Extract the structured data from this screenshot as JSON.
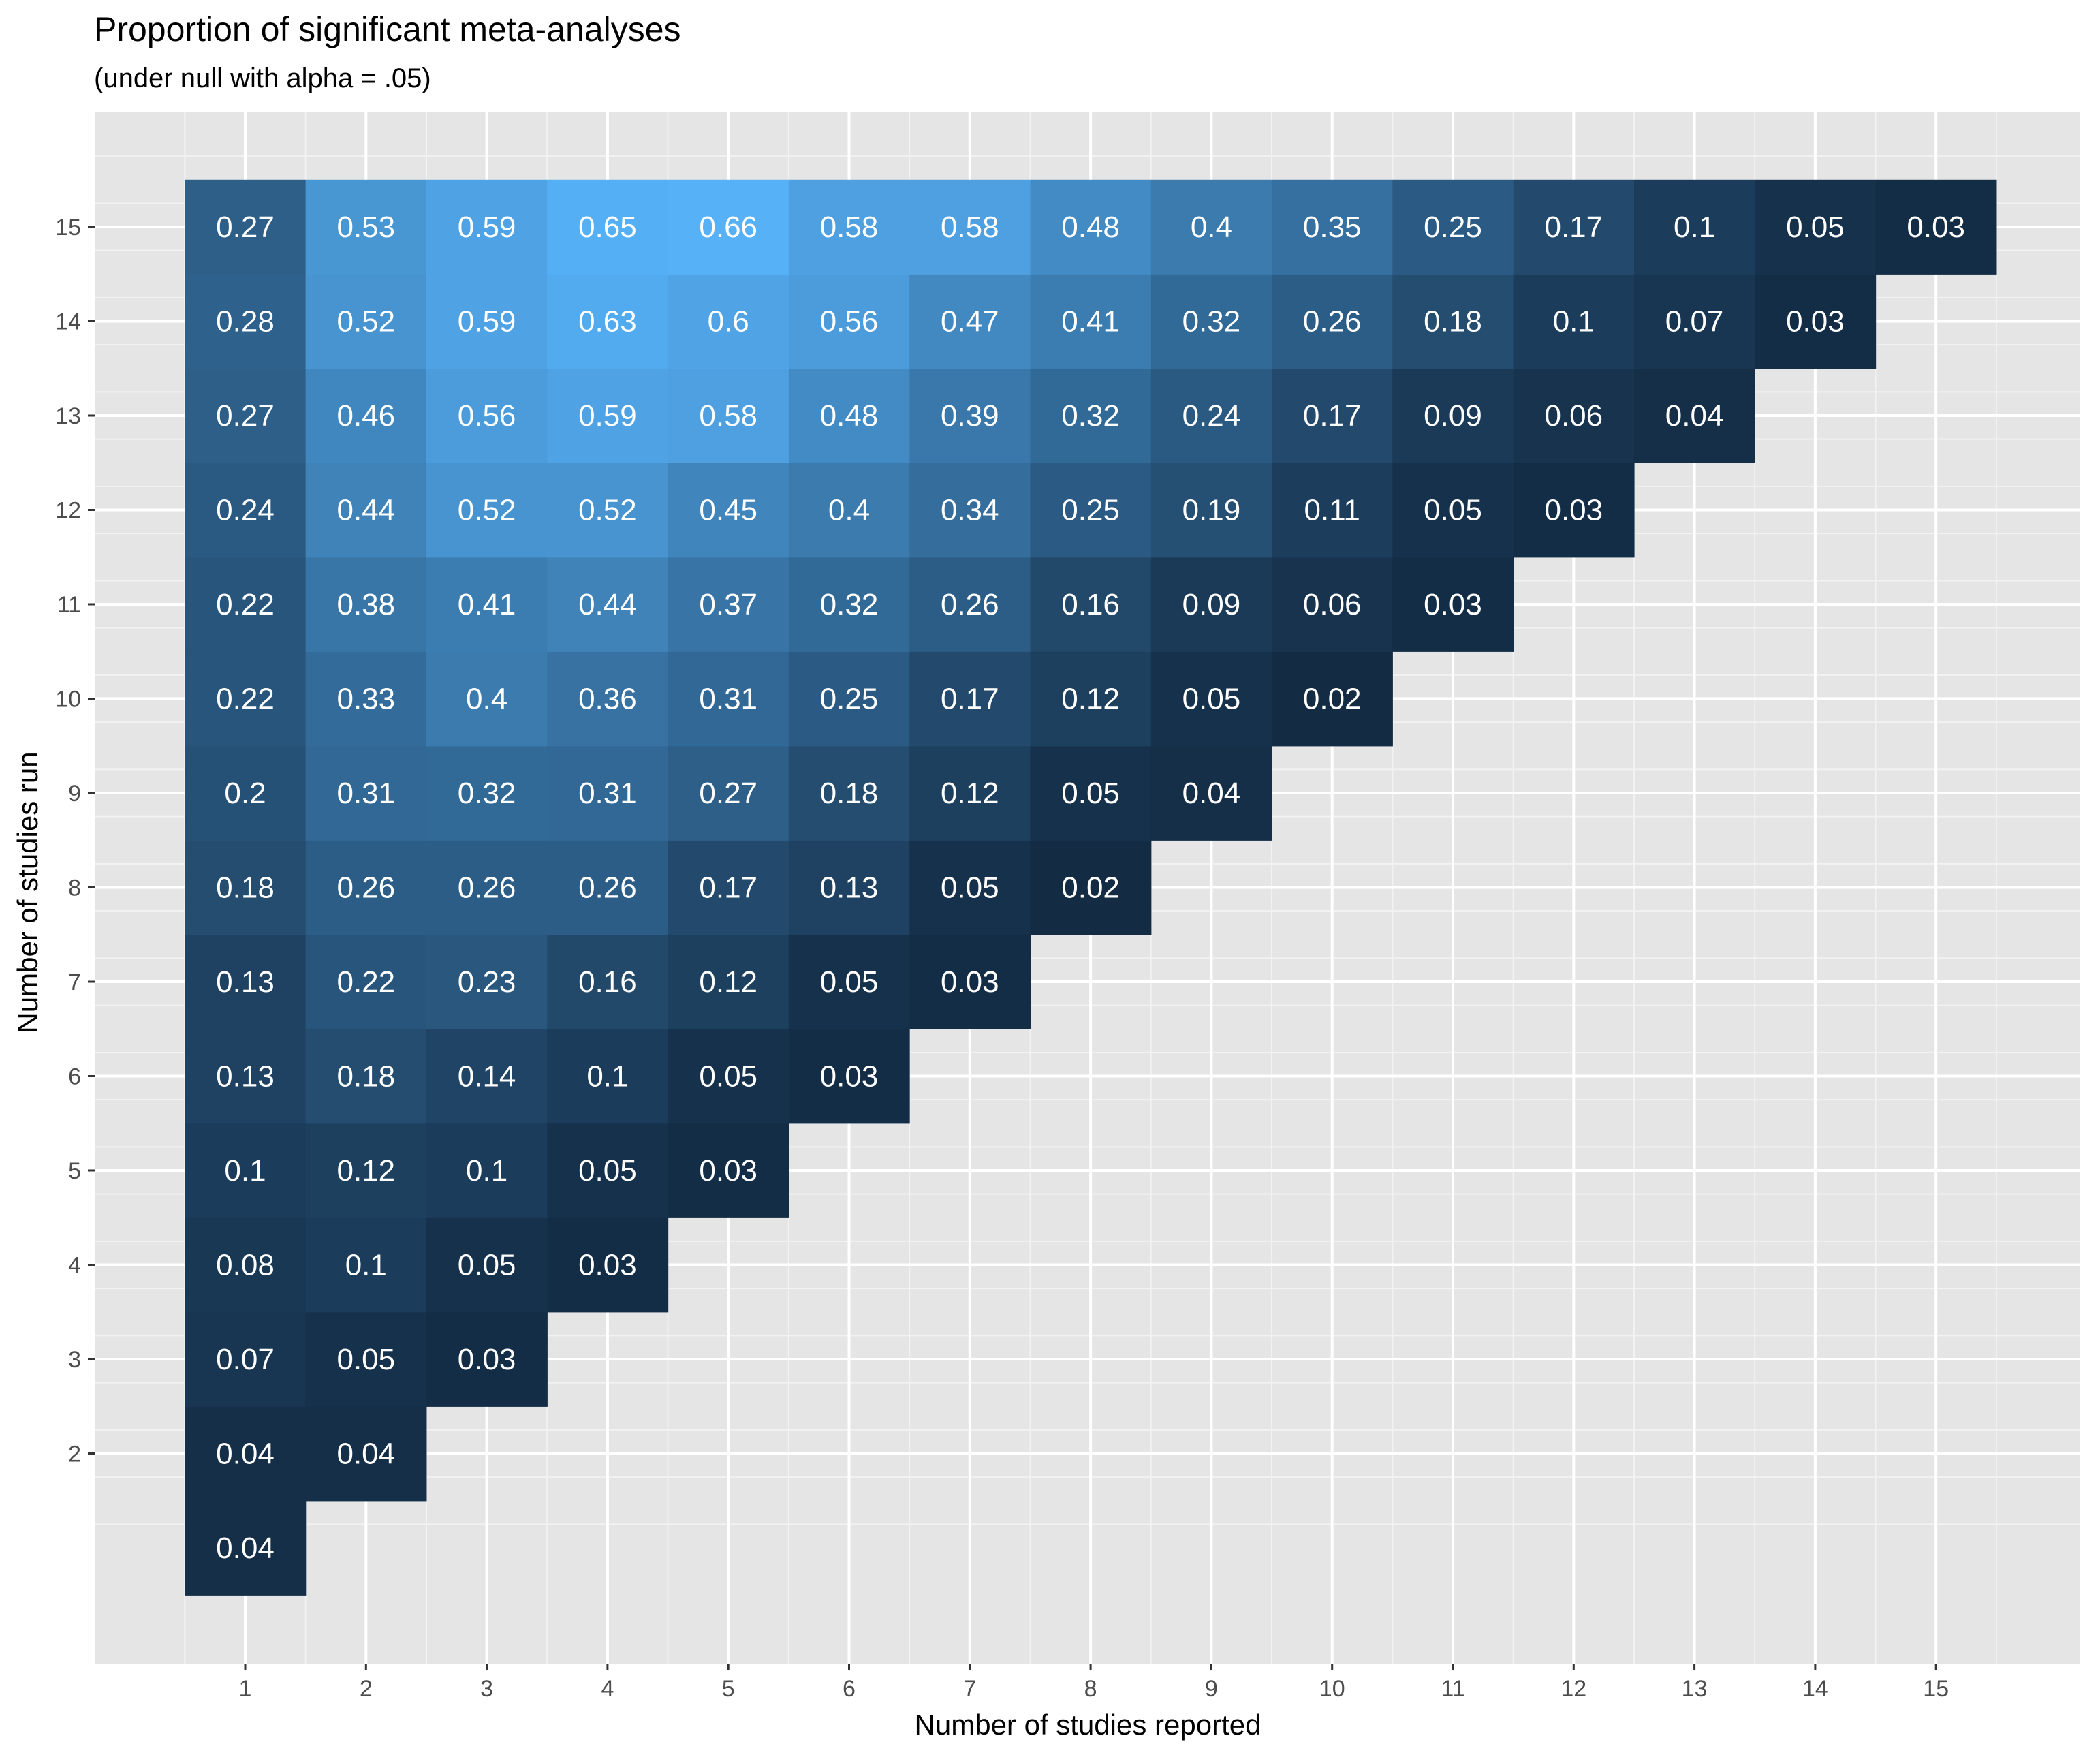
{
  "chart_data": {
    "type": "heatmap",
    "title": "Proportion of significant meta-analyses",
    "subtitle": "(under null with alpha = .05)",
    "xlabel": "Number of studies reported",
    "ylabel": "Number of studies run",
    "x_ticks": [
      "1",
      "2",
      "3",
      "4",
      "5",
      "6",
      "7",
      "8",
      "9",
      "10",
      "11",
      "12",
      "13",
      "14",
      "15"
    ],
    "y_ticks": [
      "2",
      "3",
      "4",
      "5",
      "6",
      "7",
      "8",
      "9",
      "10",
      "11",
      "12",
      "13",
      "14",
      "15"
    ],
    "xlim": [
      0.5,
      15.5
    ],
    "ylim": [
      1,
      15
    ],
    "grid": true,
    "color_scale": {
      "low": "#132B43",
      "high": "#56B1F7",
      "min": 0.02,
      "max": 0.66
    },
    "cells": [
      {
        "reported": 1,
        "run": 1,
        "value": 0.04
      },
      {
        "reported": 1,
        "run": 2,
        "value": 0.04
      },
      {
        "reported": 2,
        "run": 2,
        "value": 0.04
      },
      {
        "reported": 1,
        "run": 3,
        "value": 0.07
      },
      {
        "reported": 2,
        "run": 3,
        "value": 0.05
      },
      {
        "reported": 3,
        "run": 3,
        "value": 0.03
      },
      {
        "reported": 1,
        "run": 4,
        "value": 0.08
      },
      {
        "reported": 2,
        "run": 4,
        "value": 0.1
      },
      {
        "reported": 3,
        "run": 4,
        "value": 0.05
      },
      {
        "reported": 4,
        "run": 4,
        "value": 0.03
      },
      {
        "reported": 1,
        "run": 5,
        "value": 0.1
      },
      {
        "reported": 2,
        "run": 5,
        "value": 0.12
      },
      {
        "reported": 3,
        "run": 5,
        "value": 0.1
      },
      {
        "reported": 4,
        "run": 5,
        "value": 0.05
      },
      {
        "reported": 5,
        "run": 5,
        "value": 0.03
      },
      {
        "reported": 1,
        "run": 6,
        "value": 0.13
      },
      {
        "reported": 2,
        "run": 6,
        "value": 0.18
      },
      {
        "reported": 3,
        "run": 6,
        "value": 0.14
      },
      {
        "reported": 4,
        "run": 6,
        "value": 0.1
      },
      {
        "reported": 5,
        "run": 6,
        "value": 0.05
      },
      {
        "reported": 6,
        "run": 6,
        "value": 0.03
      },
      {
        "reported": 1,
        "run": 7,
        "value": 0.13
      },
      {
        "reported": 2,
        "run": 7,
        "value": 0.22
      },
      {
        "reported": 3,
        "run": 7,
        "value": 0.23
      },
      {
        "reported": 4,
        "run": 7,
        "value": 0.16
      },
      {
        "reported": 5,
        "run": 7,
        "value": 0.12
      },
      {
        "reported": 6,
        "run": 7,
        "value": 0.05
      },
      {
        "reported": 7,
        "run": 7,
        "value": 0.03
      },
      {
        "reported": 1,
        "run": 8,
        "value": 0.18
      },
      {
        "reported": 2,
        "run": 8,
        "value": 0.26
      },
      {
        "reported": 3,
        "run": 8,
        "value": 0.26
      },
      {
        "reported": 4,
        "run": 8,
        "value": 0.26
      },
      {
        "reported": 5,
        "run": 8,
        "value": 0.17
      },
      {
        "reported": 6,
        "run": 8,
        "value": 0.13
      },
      {
        "reported": 7,
        "run": 8,
        "value": 0.05
      },
      {
        "reported": 8,
        "run": 8,
        "value": 0.02
      },
      {
        "reported": 1,
        "run": 9,
        "value": 0.2
      },
      {
        "reported": 2,
        "run": 9,
        "value": 0.31
      },
      {
        "reported": 3,
        "run": 9,
        "value": 0.32
      },
      {
        "reported": 4,
        "run": 9,
        "value": 0.31
      },
      {
        "reported": 5,
        "run": 9,
        "value": 0.27
      },
      {
        "reported": 6,
        "run": 9,
        "value": 0.18
      },
      {
        "reported": 7,
        "run": 9,
        "value": 0.12
      },
      {
        "reported": 8,
        "run": 9,
        "value": 0.05
      },
      {
        "reported": 9,
        "run": 9,
        "value": 0.04
      },
      {
        "reported": 1,
        "run": 10,
        "value": 0.22
      },
      {
        "reported": 2,
        "run": 10,
        "value": 0.33
      },
      {
        "reported": 3,
        "run": 10,
        "value": 0.4
      },
      {
        "reported": 4,
        "run": 10,
        "value": 0.36
      },
      {
        "reported": 5,
        "run": 10,
        "value": 0.31
      },
      {
        "reported": 6,
        "run": 10,
        "value": 0.25
      },
      {
        "reported": 7,
        "run": 10,
        "value": 0.17
      },
      {
        "reported": 8,
        "run": 10,
        "value": 0.12
      },
      {
        "reported": 9,
        "run": 10,
        "value": 0.05
      },
      {
        "reported": 10,
        "run": 10,
        "value": 0.02
      },
      {
        "reported": 1,
        "run": 11,
        "value": 0.22
      },
      {
        "reported": 2,
        "run": 11,
        "value": 0.38
      },
      {
        "reported": 3,
        "run": 11,
        "value": 0.41
      },
      {
        "reported": 4,
        "run": 11,
        "value": 0.44
      },
      {
        "reported": 5,
        "run": 11,
        "value": 0.37
      },
      {
        "reported": 6,
        "run": 11,
        "value": 0.32
      },
      {
        "reported": 7,
        "run": 11,
        "value": 0.26
      },
      {
        "reported": 8,
        "run": 11,
        "value": 0.16
      },
      {
        "reported": 9,
        "run": 11,
        "value": 0.09
      },
      {
        "reported": 10,
        "run": 11,
        "value": 0.06
      },
      {
        "reported": 11,
        "run": 11,
        "value": 0.03
      },
      {
        "reported": 1,
        "run": 12,
        "value": 0.24
      },
      {
        "reported": 2,
        "run": 12,
        "value": 0.44
      },
      {
        "reported": 3,
        "run": 12,
        "value": 0.52
      },
      {
        "reported": 4,
        "run": 12,
        "value": 0.52
      },
      {
        "reported": 5,
        "run": 12,
        "value": 0.45
      },
      {
        "reported": 6,
        "run": 12,
        "value": 0.4
      },
      {
        "reported": 7,
        "run": 12,
        "value": 0.34
      },
      {
        "reported": 8,
        "run": 12,
        "value": 0.25
      },
      {
        "reported": 9,
        "run": 12,
        "value": 0.19
      },
      {
        "reported": 10,
        "run": 12,
        "value": 0.11
      },
      {
        "reported": 11,
        "run": 12,
        "value": 0.05
      },
      {
        "reported": 12,
        "run": 12,
        "value": 0.03
      },
      {
        "reported": 1,
        "run": 13,
        "value": 0.27
      },
      {
        "reported": 2,
        "run": 13,
        "value": 0.46
      },
      {
        "reported": 3,
        "run": 13,
        "value": 0.56
      },
      {
        "reported": 4,
        "run": 13,
        "value": 0.59
      },
      {
        "reported": 5,
        "run": 13,
        "value": 0.58
      },
      {
        "reported": 6,
        "run": 13,
        "value": 0.48
      },
      {
        "reported": 7,
        "run": 13,
        "value": 0.39
      },
      {
        "reported": 8,
        "run": 13,
        "value": 0.32
      },
      {
        "reported": 9,
        "run": 13,
        "value": 0.24
      },
      {
        "reported": 10,
        "run": 13,
        "value": 0.17
      },
      {
        "reported": 11,
        "run": 13,
        "value": 0.09
      },
      {
        "reported": 12,
        "run": 13,
        "value": 0.06
      },
      {
        "reported": 13,
        "run": 13,
        "value": 0.04
      },
      {
        "reported": 1,
        "run": 14,
        "value": 0.28
      },
      {
        "reported": 2,
        "run": 14,
        "value": 0.52
      },
      {
        "reported": 3,
        "run": 14,
        "value": 0.59
      },
      {
        "reported": 4,
        "run": 14,
        "value": 0.63
      },
      {
        "reported": 5,
        "run": 14,
        "value": 0.6
      },
      {
        "reported": 6,
        "run": 14,
        "value": 0.56
      },
      {
        "reported": 7,
        "run": 14,
        "value": 0.47
      },
      {
        "reported": 8,
        "run": 14,
        "value": 0.41
      },
      {
        "reported": 9,
        "run": 14,
        "value": 0.32
      },
      {
        "reported": 10,
        "run": 14,
        "value": 0.26
      },
      {
        "reported": 11,
        "run": 14,
        "value": 0.18
      },
      {
        "reported": 12,
        "run": 14,
        "value": 0.1
      },
      {
        "reported": 13,
        "run": 14,
        "value": 0.07
      },
      {
        "reported": 14,
        "run": 14,
        "value": 0.03
      },
      {
        "reported": 1,
        "run": 15,
        "value": 0.27
      },
      {
        "reported": 2,
        "run": 15,
        "value": 0.53
      },
      {
        "reported": 3,
        "run": 15,
        "value": 0.59
      },
      {
        "reported": 4,
        "run": 15,
        "value": 0.65
      },
      {
        "reported": 5,
        "run": 15,
        "value": 0.66
      },
      {
        "reported": 6,
        "run": 15,
        "value": 0.58
      },
      {
        "reported": 7,
        "run": 15,
        "value": 0.58
      },
      {
        "reported": 8,
        "run": 15,
        "value": 0.48
      },
      {
        "reported": 9,
        "run": 15,
        "value": 0.4
      },
      {
        "reported": 10,
        "run": 15,
        "value": 0.35
      },
      {
        "reported": 11,
        "run": 15,
        "value": 0.25
      },
      {
        "reported": 12,
        "run": 15,
        "value": 0.17
      },
      {
        "reported": 13,
        "run": 15,
        "value": 0.1
      },
      {
        "reported": 14,
        "run": 15,
        "value": 0.05
      },
      {
        "reported": 15,
        "run": 15,
        "value": 0.03
      }
    ]
  }
}
